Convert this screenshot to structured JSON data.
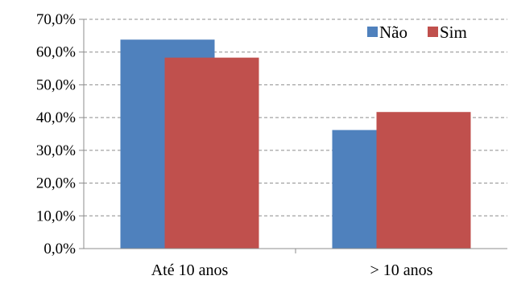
{
  "chart_data": {
    "type": "bar",
    "categories": [
      "Até 10 anos",
      "> 10 anos"
    ],
    "series": [
      {
        "name": "Não",
        "values": [
          63.8,
          36.2
        ],
        "color": "#4F81BD"
      },
      {
        "name": "Sim",
        "values": [
          58.3,
          41.7
        ],
        "color": "#C0504D"
      }
    ],
    "ylim": [
      0,
      70
    ],
    "yticks": [
      0,
      10,
      20,
      30,
      40,
      50,
      60,
      70
    ],
    "ytick_labels": [
      "0,0%",
      "10,0%",
      "20,0%",
      "30,0%",
      "40,0%",
      "50,0%",
      "60,0%",
      "70,0%"
    ],
    "grid": true,
    "grid_style": "dashed",
    "legend": "top-right",
    "title": "",
    "xlabel": "",
    "ylabel": ""
  }
}
